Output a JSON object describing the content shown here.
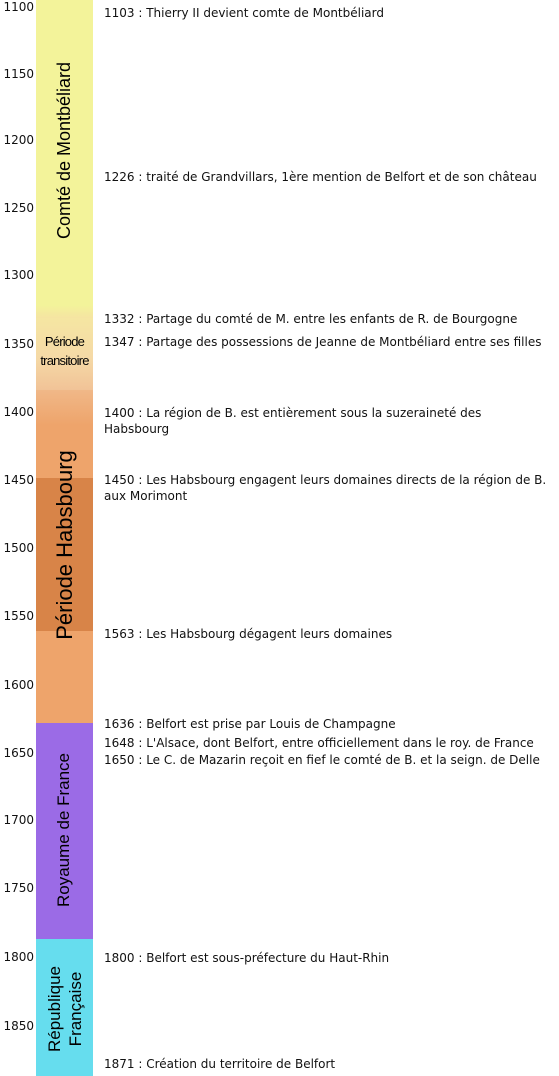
{
  "years": [
    "1100",
    "1150",
    "1200",
    "1250",
    "1300",
    "1350",
    "1400",
    "1450",
    "1500",
    "1550",
    "1600",
    "1650",
    "1700",
    "1750",
    "1800",
    "1850"
  ],
  "periods": [
    {
      "label": "Comté de Montbéliard",
      "color": "#f3f39a"
    },
    {
      "label": "Période transitoire",
      "color": "#f5d9a6"
    },
    {
      "label": "Période Habsbourg",
      "color": "#eea46b"
    },
    {
      "label": "",
      "color": "#d88448"
    },
    {
      "label": "Royaume de France",
      "color": "#9b6be6"
    },
    {
      "label": "République Française",
      "color": "#66ddee"
    }
  ],
  "events": [
    "1103 : Thierry II devient comte de Montbéliard",
    "1226 : traité de Grandvillars, 1ère mention de Belfort et de son château",
    "1332 : Partage du comté de M. entre les enfants de R. de Bourgogne",
    "1347 : Partage des possessions de Jeanne de Montbéliard entre ses filles",
    "1400 : La région de B. est entièrement sous la suzeraineté des Habsbourg",
    "1450 : Les Habsbourg engagent leurs domaines directs de la région de B. aux Morimont",
    "1563 : Les Habsbourg dégagent leurs domaines",
    "1636 : Belfort est prise par Louis de Champagne",
    "1648 : L'Alsace, dont Belfort, entre officiellement dans le roy. de France",
    "1650 : Le C. de Mazarin reçoit en fief le comté de B. et la seign. de Delle",
    "1800 : Belfort est sous-préfecture du Haut-Rhin",
    "1871 : Création du territoire de Belfort"
  ]
}
